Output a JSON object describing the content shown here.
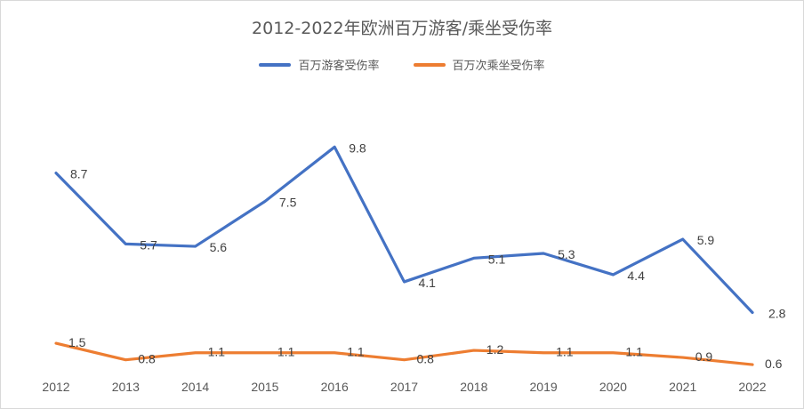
{
  "chart_data": {
    "type": "line",
    "title": "2012-2022年欧洲百万游客/乘坐受伤率",
    "categories": [
      "2012",
      "2013",
      "2014",
      "2015",
      "2016",
      "2017",
      "2018",
      "2019",
      "2020",
      "2021",
      "2022"
    ],
    "series": [
      {
        "name": "百万游客受伤率",
        "color": "#4472c4",
        "values": [
          8.7,
          5.7,
          5.6,
          7.5,
          9.8,
          4.1,
          5.1,
          5.3,
          4.4,
          5.9,
          2.8
        ],
        "labels": [
          "8.7",
          "5.7",
          "5.6",
          "7.5",
          "9.8",
          "4.1",
          "5.1",
          "5.3",
          "4.4",
          "5.9",
          "2.8"
        ]
      },
      {
        "name": "百万次乘坐受伤率",
        "color": "#ed7d31",
        "values": [
          1.5,
          0.8,
          1.1,
          1.1,
          1.1,
          0.8,
          1.2,
          1.1,
          1.1,
          0.9,
          0.6
        ],
        "labels": [
          "1.5",
          "0.8",
          "1.1",
          "1.1",
          "1.1",
          "0.8",
          "1.2",
          "1.1",
          "1.1",
          "0.9",
          "0.6"
        ]
      }
    ],
    "ylim": [
      0,
      12
    ],
    "grid": false,
    "legend": "top"
  }
}
